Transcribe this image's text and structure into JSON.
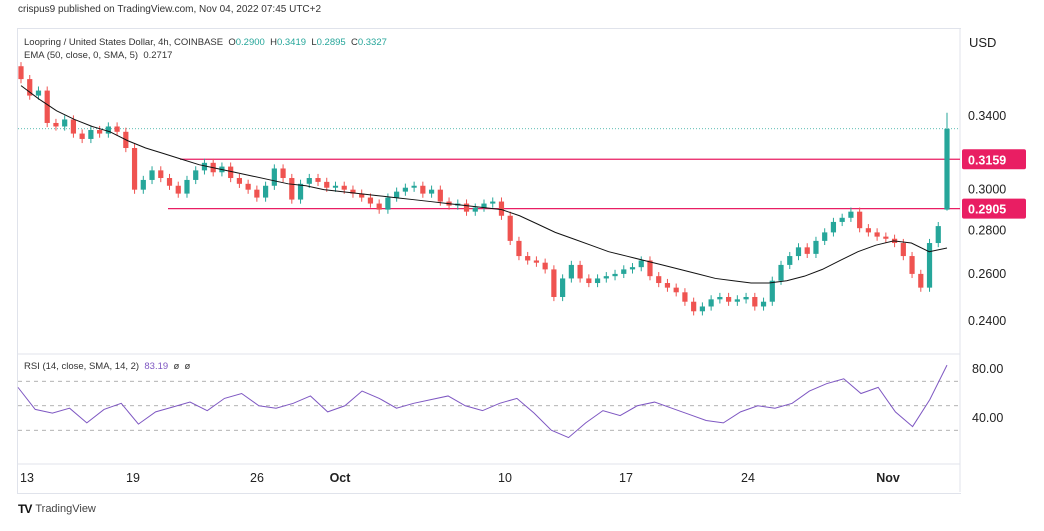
{
  "header": {
    "published": "crispus9 published on TradingView.com, Nov 04, 2022 07:45 UTC+2"
  },
  "legend": {
    "symbol": "Loopring / United States Dollar, 4h, COINBASE",
    "o_label": "O",
    "o": "0.2900",
    "h_label": "H",
    "h": "0.3419",
    "l_label": "L",
    "l": "0.2895",
    "c_label": "C",
    "c": "0.3327",
    "ema": "EMA (50, close, 0, SMA, 5)",
    "ema_value": "0.2717"
  },
  "rsi_legend": {
    "label": "RSI (14, close, SMA, 14, 2)",
    "value": "83.19",
    "extra1": "ø",
    "extra2": "ø"
  },
  "currency": "USD",
  "footer": {
    "logo_text": "TradingView"
  },
  "colors": {
    "up": "#26a69a",
    "down": "#ef5350",
    "level": "#e91e63",
    "ema": "#111111",
    "rsi": "#7e57c2"
  },
  "chart_data": [
    {
      "type": "candlestick",
      "scale": "log",
      "ylim": [
        0.232,
        0.372
      ],
      "y_ticks": [
        "0.3400",
        "0.3000",
        "0.2800",
        "0.2600",
        "0.2400"
      ],
      "x_ticks": [
        "13",
        "19",
        "26",
        "Oct",
        "10",
        "17",
        "24",
        "Nov"
      ],
      "levels": [
        {
          "value": 0.3159,
          "label": "0.3159"
        },
        {
          "value": 0.2905,
          "label": "0.2905"
        }
      ],
      "last_price": 0.3327,
      "last_candle": {
        "o": 0.29,
        "h": 0.3419,
        "l": 0.2895,
        "c": 0.3327
      },
      "first_open": 0.37,
      "closes": [
        0.362,
        0.352,
        0.355,
        0.336,
        0.334,
        0.338,
        0.33,
        0.327,
        0.332,
        0.33,
        0.334,
        0.331,
        0.322,
        0.3,
        0.305,
        0.31,
        0.306,
        0.302,
        0.298,
        0.305,
        0.31,
        0.314,
        0.309,
        0.312,
        0.306,
        0.303,
        0.3,
        0.296,
        0.302,
        0.311,
        0.306,
        0.295,
        0.303,
        0.306,
        0.304,
        0.301,
        0.302,
        0.3,
        0.298,
        0.296,
        0.293,
        0.29,
        0.296,
        0.299,
        0.301,
        0.302,
        0.298,
        0.3,
        0.294,
        0.292,
        0.293,
        0.289,
        0.291,
        0.293,
        0.294,
        0.287,
        0.275,
        0.268,
        0.266,
        0.265,
        0.262,
        0.25,
        0.258,
        0.264,
        0.258,
        0.256,
        0.258,
        0.259,
        0.26,
        0.262,
        0.263,
        0.266,
        0.259,
        0.256,
        0.254,
        0.252,
        0.248,
        0.244,
        0.246,
        0.249,
        0.25,
        0.248,
        0.249,
        0.25,
        0.246,
        0.248,
        0.257,
        0.264,
        0.268,
        0.272,
        0.269,
        0.275,
        0.279,
        0.284,
        0.286,
        0.289,
        0.281,
        0.279,
        0.277,
        0.276,
        0.274,
        0.268,
        0.26,
        0.254,
        0.274,
        0.282,
        0.3327
      ],
      "ema": [
        0.358,
        0.35,
        0.343,
        0.338,
        0.334,
        0.331,
        0.326,
        0.322,
        0.319,
        0.316,
        0.313,
        0.311,
        0.309,
        0.307,
        0.305,
        0.303,
        0.302,
        0.3,
        0.299,
        0.298,
        0.297,
        0.296,
        0.295,
        0.294,
        0.293,
        0.292,
        0.291,
        0.29,
        0.287,
        0.283,
        0.279,
        0.276,
        0.273,
        0.27,
        0.268,
        0.266,
        0.264,
        0.262,
        0.26,
        0.258,
        0.257,
        0.256,
        0.256,
        0.257,
        0.259,
        0.262,
        0.266,
        0.27,
        0.273,
        0.275,
        0.274,
        0.27,
        0.2717
      ]
    },
    {
      "type": "line",
      "name": "RSI",
      "ylim": [
        0,
        100
      ],
      "y_ticks": [
        "80.00",
        "40.00"
      ],
      "bands": [
        70,
        50,
        30
      ],
      "values": [
        65,
        47,
        44,
        48,
        36,
        47,
        52,
        35,
        45,
        49,
        53,
        46,
        56,
        60,
        50,
        48,
        52,
        58,
        45,
        50,
        62,
        56,
        48,
        52,
        55,
        58,
        50,
        46,
        52,
        56,
        44,
        30,
        24,
        36,
        46,
        42,
        50,
        53,
        48,
        43,
        38,
        36,
        45,
        50,
        48,
        52,
        62,
        68,
        72,
        60,
        65,
        45,
        33,
        55,
        83.19
      ]
    }
  ]
}
